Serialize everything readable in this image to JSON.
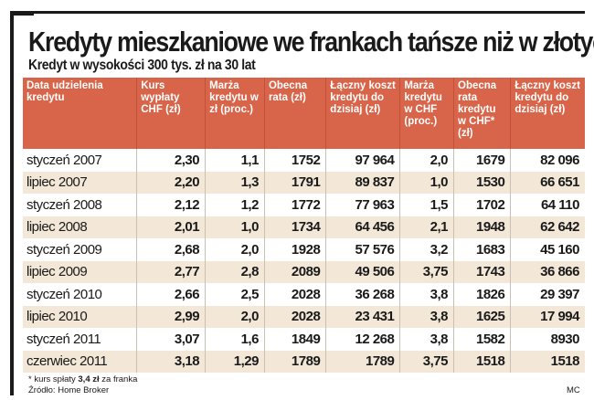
{
  "title": "Kredyty mieszkaniowe we frankach tańsze niż w złotych",
  "subtitle": "Kredyt w wysokości 300 tys. zł na 30 lat",
  "colors": {
    "header": "#d8654a",
    "row_alt": "#f3e8d8",
    "frame": "#1a1a1a"
  },
  "chart_data": {
    "type": "table",
    "columns": [
      "Data udzielenia kredytu",
      "Kurs wypłaty CHF (zł)",
      "Marża kredytu w zł (proc.)",
      "Obecna rata (zł)",
      "Łączny koszt kredytu do dzisiaj (zł)",
      "Marża kredytu w CHF (proc.)",
      "Obecna rata kredytu w CHF* (zł)",
      "Łączny koszt kredytu do dzisiaj (zł)"
    ],
    "rows": [
      [
        "styczeń 2007",
        "2,30",
        "1,1",
        "1752",
        "97 964",
        "2,0",
        "1679",
        "82 096"
      ],
      [
        "lipiec 2007",
        "2,20",
        "1,3",
        "1791",
        "89 837",
        "1,0",
        "1530",
        "66 651"
      ],
      [
        "styczeń 2008",
        "2,12",
        "1,2",
        "1772",
        "77 963",
        "1,5",
        "1702",
        "64 110"
      ],
      [
        "lipiec 2008",
        "2,01",
        "1,0",
        "1734",
        "64 456",
        "2,1",
        "1948",
        "62 642"
      ],
      [
        "styczeń 2009",
        "2,68",
        "2,0",
        "1928",
        "57 576",
        "3,2",
        "1683",
        "45 160"
      ],
      [
        "lipiec 2009",
        "2,77",
        "2,8",
        "2089",
        "49 506",
        "3,75",
        "1743",
        "36 866"
      ],
      [
        "styczeń 2010",
        "2,66",
        "2,5",
        "2028",
        "36 268",
        "3,8",
        "1826",
        "29 397"
      ],
      [
        "lipiec 2010",
        "2,99",
        "2,0",
        "2028",
        "23 431",
        "3,8",
        "1625",
        "17 994"
      ],
      [
        "styczeń 2011",
        "3,07",
        "1,6",
        "1849",
        "12 268",
        "3,8",
        "1582",
        "8930"
      ],
      [
        "czerwiec 2011",
        "3,18",
        "1,29",
        "1789",
        "1789",
        "3,75",
        "1518",
        "1518"
      ]
    ]
  },
  "footnote": {
    "prefix": "* kurs spłaty ",
    "value": "3,4 zł",
    "suffix": " za franka"
  },
  "source": "Źródło: Home Broker",
  "credit": "MC"
}
